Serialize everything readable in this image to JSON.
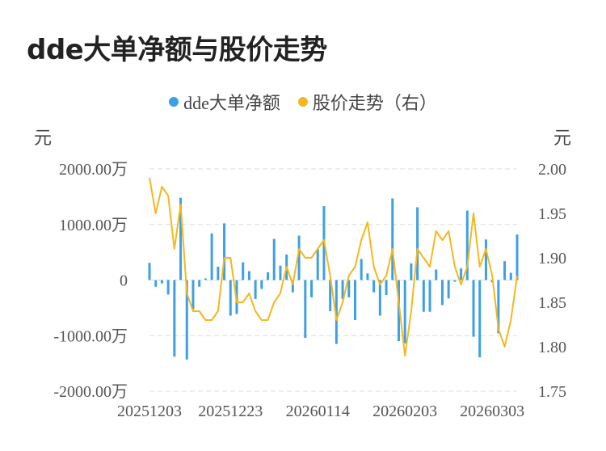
{
  "title": "dde大单净额与股价走势",
  "legend": {
    "bar_label": "dde大单净额",
    "line_label": "股价走势（右）"
  },
  "colors": {
    "bar": "#3ea0e4",
    "line": "#f4b81e",
    "grid": "#dddddd"
  },
  "chart_data": {
    "type": "bar+line",
    "left_unit": "元",
    "right_unit": "元",
    "left_axis": {
      "ylim": [
        -2000,
        2000
      ],
      "ticks": [
        2000,
        1000,
        0,
        -1000,
        -2000
      ],
      "tick_labels": [
        "2000.00万",
        "1000.00万",
        "0",
        "-1000.00万",
        "-2000.00万"
      ]
    },
    "right_axis": {
      "ylim": [
        1.75,
        2.0
      ],
      "ticks": [
        2.0,
        1.95,
        1.9,
        1.85,
        1.8,
        1.75
      ],
      "tick_labels": [
        "2.00",
        "1.95",
        "1.90",
        "1.85",
        "1.80",
        "1.75"
      ]
    },
    "x_tick_labels": [
      "20251203",
      "20251223",
      "20260114",
      "20260203",
      "20260303"
    ],
    "x_tick_index": [
      0,
      13,
      27,
      41,
      55
    ],
    "n_points": 60,
    "series": [
      {
        "name": "dde大单净额",
        "type": "bar",
        "values": [
          310,
          -120,
          -60,
          -260,
          -1380,
          1480,
          -1430,
          -530,
          -120,
          30,
          840,
          240,
          1020,
          -640,
          -610,
          320,
          160,
          -340,
          -160,
          140,
          740,
          260,
          460,
          -220,
          800,
          -1040,
          -310,
          560,
          1330,
          -560,
          -1150,
          -340,
          -310,
          -720,
          380,
          120,
          -220,
          -640,
          -270,
          1470,
          -1100,
          -1140,
          300,
          1310,
          -570,
          -570,
          190,
          -450,
          -330,
          -30,
          210,
          1250,
          -1020,
          -1390,
          730,
          -40,
          -960,
          340,
          130,
          820
        ]
      },
      {
        "name": "股价走势（右）",
        "type": "line",
        "values": [
          1.99,
          1.95,
          1.98,
          1.97,
          1.91,
          1.96,
          1.86,
          1.84,
          1.84,
          1.83,
          1.83,
          1.84,
          1.9,
          1.9,
          1.85,
          1.85,
          1.86,
          1.84,
          1.83,
          1.83,
          1.85,
          1.86,
          1.89,
          1.87,
          1.91,
          1.9,
          1.9,
          1.91,
          1.92,
          1.88,
          1.83,
          1.85,
          1.88,
          1.89,
          1.92,
          1.94,
          1.89,
          1.87,
          1.88,
          1.91,
          1.85,
          1.79,
          1.84,
          1.91,
          1.9,
          1.89,
          1.93,
          1.92,
          1.93,
          1.89,
          1.87,
          1.89,
          1.95,
          1.89,
          1.91,
          1.88,
          1.82,
          1.8,
          1.83,
          1.88
        ]
      }
    ]
  }
}
